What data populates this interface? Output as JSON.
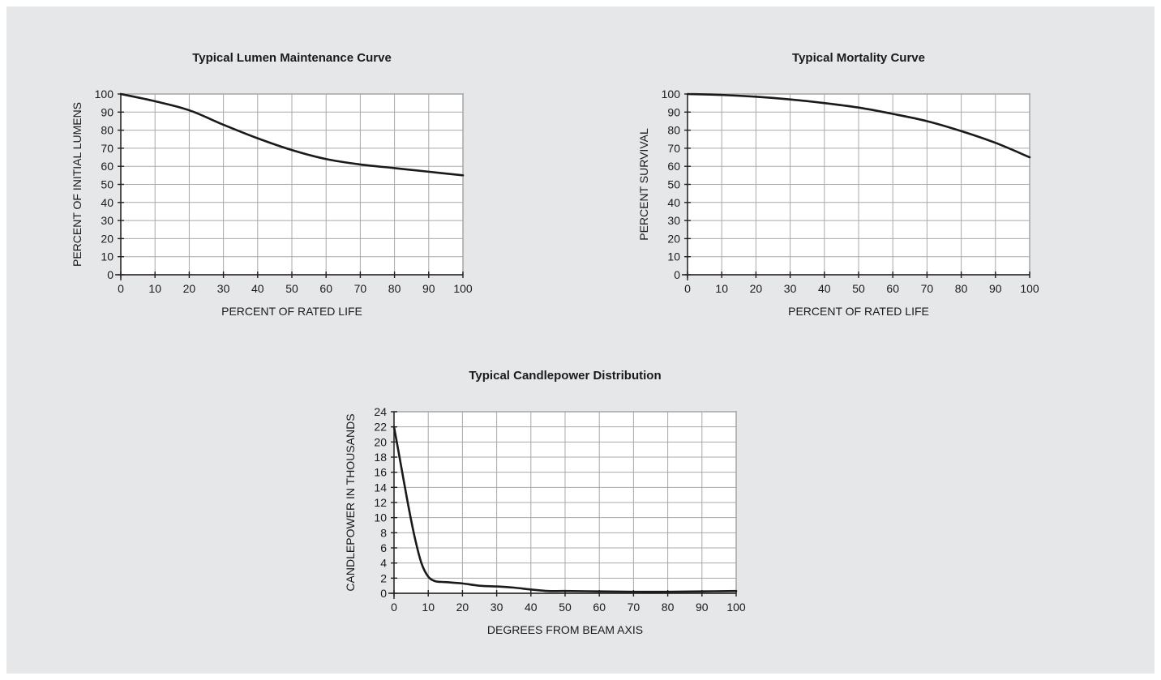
{
  "chart_data": [
    {
      "type": "line",
      "title": "Typical Lumen Maintenance Curve",
      "xlabel": "PERCENT OF RATED LIFE",
      "ylabel": "PERCENT  OF INITIAL LUMENS",
      "xlim": [
        0,
        100
      ],
      "ylim": [
        0,
        100
      ],
      "xticks": [
        0,
        10,
        20,
        30,
        40,
        50,
        60,
        70,
        80,
        90,
        100
      ],
      "yticks": [
        0,
        10,
        20,
        30,
        40,
        50,
        60,
        70,
        80,
        90,
        100
      ],
      "grid": true,
      "x": [
        0,
        10,
        20,
        30,
        40,
        50,
        60,
        70,
        80,
        90,
        100
      ],
      "y": [
        100,
        96,
        91,
        83,
        75.5,
        69,
        64,
        61,
        59,
        57,
        55
      ],
      "colors": {
        "curve": "#1a1a1a",
        "grid": "#a7a9ac"
      }
    },
    {
      "type": "line",
      "title": "Typical Mortality Curve",
      "xlabel": "PERCENT OF RATED LIFE",
      "ylabel": "PERCENT  SURVIVAL",
      "xlim": [
        0,
        100
      ],
      "ylim": [
        0,
        100
      ],
      "xticks": [
        0,
        10,
        20,
        30,
        40,
        50,
        60,
        70,
        80,
        90,
        100
      ],
      "yticks": [
        0,
        10,
        20,
        30,
        40,
        50,
        60,
        70,
        80,
        90,
        100
      ],
      "grid": true,
      "x": [
        0,
        10,
        20,
        30,
        40,
        50,
        60,
        70,
        80,
        90,
        100
      ],
      "y": [
        100,
        99.5,
        98.5,
        97,
        95,
        92.5,
        89,
        85,
        79.5,
        73,
        65
      ],
      "colors": {
        "curve": "#1a1a1a",
        "grid": "#a7a9ac"
      }
    },
    {
      "type": "line",
      "title": "Typical Candlepower Distribution",
      "xlabel": "DEGREES FROM BEAM AXIS",
      "ylabel": "CANDLEPOWER IN THOUSANDS",
      "xlim": [
        0,
        100
      ],
      "ylim": [
        0,
        24
      ],
      "xticks": [
        0,
        10,
        20,
        30,
        40,
        50,
        60,
        70,
        80,
        90,
        100
      ],
      "yticks": [
        0,
        2,
        4,
        6,
        8,
        10,
        12,
        14,
        16,
        18,
        20,
        22,
        24
      ],
      "grid": true,
      "x": [
        0,
        2,
        4,
        6,
        8,
        10,
        12,
        14,
        16,
        20,
        25,
        30,
        35,
        40,
        45,
        50,
        60,
        70,
        80,
        90,
        100
      ],
      "y": [
        22,
        17,
        12,
        7.5,
        4,
        2.2,
        1.6,
        1.5,
        1.45,
        1.3,
        1.0,
        0.9,
        0.75,
        0.5,
        0.3,
        0.3,
        0.25,
        0.2,
        0.2,
        0.25,
        0.3
      ],
      "colors": {
        "curve": "#1a1a1a",
        "grid": "#a7a9ac"
      }
    }
  ]
}
